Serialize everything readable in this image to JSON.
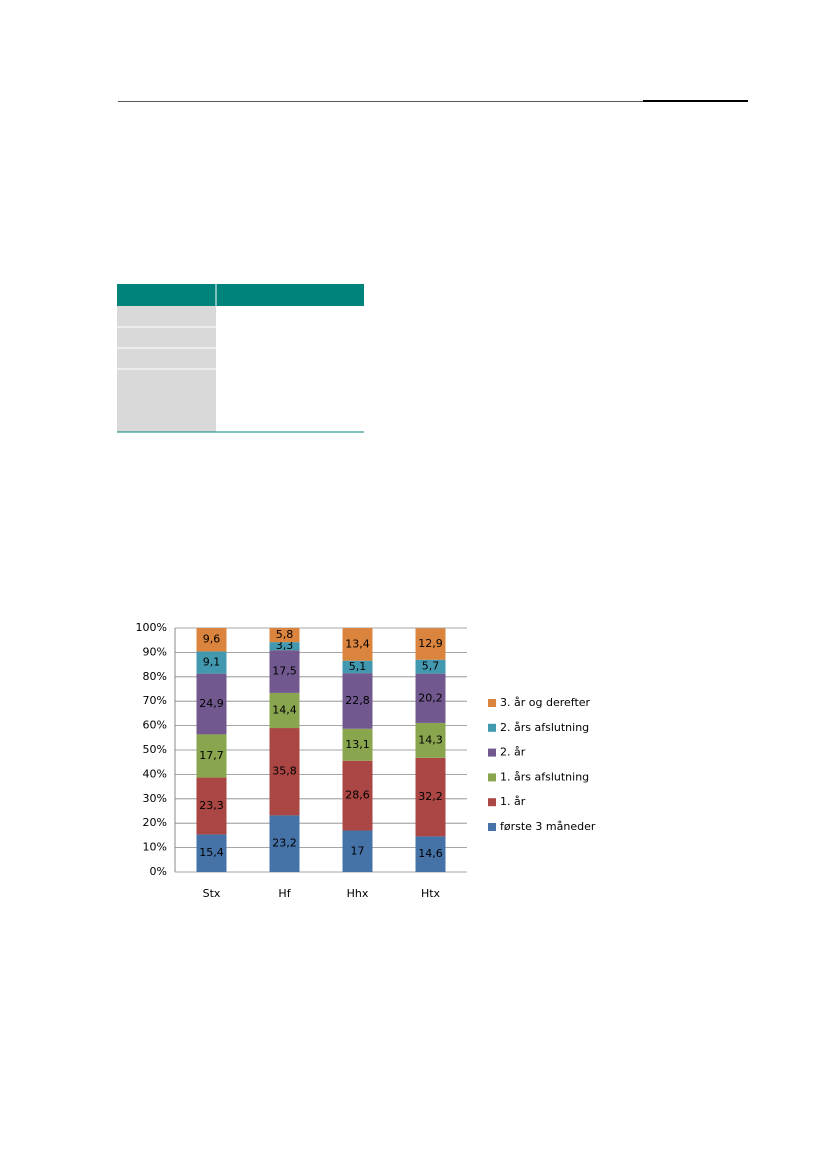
{
  "chart_data": {
    "type": "stacked_bar",
    "categories": [
      "Stx",
      "Hf",
      "Hhx",
      "Htx"
    ],
    "series": [
      {
        "name": "første 3 måneder",
        "color": "#4572a7",
        "values": [
          15.4,
          23.2,
          17,
          14.6
        ],
        "value_labels": [
          "15,4",
          "23,2",
          "17",
          "14,6"
        ]
      },
      {
        "name": "1. år",
        "color": "#aa4643",
        "values": [
          23.3,
          35.8,
          28.6,
          32.2
        ],
        "value_labels": [
          "23,3",
          "35,8",
          "28,6",
          "32,2"
        ]
      },
      {
        "name": "1. års afslutning",
        "color": "#89a54e",
        "values": [
          17.7,
          14.4,
          13.1,
          14.3
        ],
        "value_labels": [
          "17,7",
          "14,4",
          "13,1",
          "14,3"
        ]
      },
      {
        "name": "2. år",
        "color": "#71588f",
        "values": [
          24.9,
          17.5,
          22.8,
          20.2
        ],
        "value_labels": [
          "24,9",
          "17,5",
          "22,8",
          "20,2"
        ]
      },
      {
        "name": "2. års afslutning",
        "color": "#4198af",
        "values": [
          9.1,
          3.3,
          5.1,
          5.7
        ],
        "value_labels": [
          "9,1",
          "3,3",
          "5,1",
          "5,7"
        ]
      },
      {
        "name": "3. år og derefter",
        "color": "#db843d",
        "values": [
          9.6,
          5.8,
          13.4,
          12.9
        ],
        "value_labels": [
          "9,6",
          "5,8",
          "13,4",
          "12,9"
        ]
      }
    ],
    "ylim": [
      0,
      100
    ],
    "yticks": [
      {
        "value": 0,
        "label": "0%"
      },
      {
        "value": 10,
        "label": "10%"
      },
      {
        "value": 20,
        "label": "20%"
      },
      {
        "value": 30,
        "label": "30%"
      },
      {
        "value": 40,
        "label": "40%"
      },
      {
        "value": 50,
        "label": "50%"
      },
      {
        "value": 60,
        "label": "60%"
      },
      {
        "value": 70,
        "label": "70%"
      },
      {
        "value": 80,
        "label": "80%"
      },
      {
        "value": 90,
        "label": "90%"
      },
      {
        "value": 100,
        "label": "100%"
      }
    ],
    "grid": true,
    "legend": "right"
  }
}
